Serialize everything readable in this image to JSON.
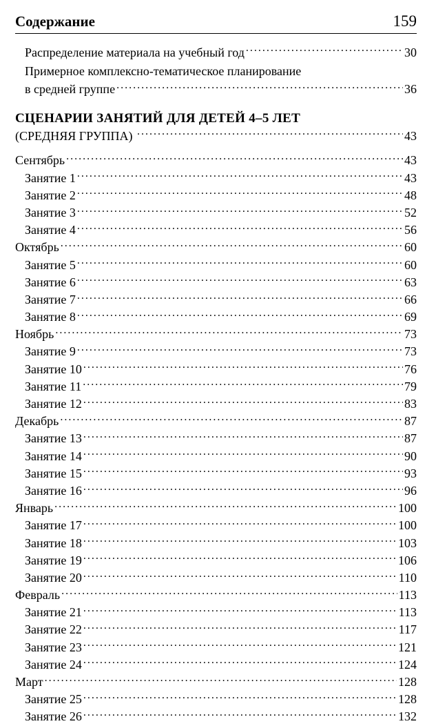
{
  "header": {
    "title": "Содержание",
    "page_number": "159"
  },
  "preface": [
    {
      "label": "Распределение материала на учебный год",
      "page": "30",
      "indent": 1
    },
    {
      "label_lines": [
        "Примерное комплексно-тематическое планирование",
        "в средней группе"
      ],
      "page": "36",
      "indent": 1
    }
  ],
  "section": {
    "title": "СЦЕНАРИИ ЗАНЯТИЙ ДЛЯ ДЕТЕЙ 4–5 ЛЕТ",
    "subtitle": "(СРЕДНЯЯ ГРУППА)",
    "page": "43"
  },
  "months": [
    {
      "name": "Сентябрь",
      "page": "43",
      "lessons": [
        {
          "label": "Занятие 1",
          "page": "43"
        },
        {
          "label": "Занятие 2",
          "page": "48"
        },
        {
          "label": "Занятие 3",
          "page": "52"
        },
        {
          "label": "Занятие 4",
          "page": "56"
        }
      ]
    },
    {
      "name": "Октябрь",
      "page": "60",
      "lessons": [
        {
          "label": "Занятие 5",
          "page": "60"
        },
        {
          "label": "Занятие 6",
          "page": "63"
        },
        {
          "label": "Занятие 7",
          "page": "66"
        },
        {
          "label": "Занятие 8",
          "page": "69"
        }
      ]
    },
    {
      "name": "Ноябрь",
      "page": "73",
      "lessons": [
        {
          "label": "Занятие 9",
          "page": "73"
        },
        {
          "label": "Занятие 10",
          "page": "76"
        },
        {
          "label": "Занятие 11",
          "page": "79"
        },
        {
          "label": "Занятие 12",
          "page": "83"
        }
      ]
    },
    {
      "name": "Декабрь",
      "page": "87",
      "lessons": [
        {
          "label": "Занятие 13",
          "page": "87"
        },
        {
          "label": "Занятие 14",
          "page": "90"
        },
        {
          "label": "Занятие 15",
          "page": "93"
        },
        {
          "label": "Занятие 16",
          "page": "96"
        }
      ]
    },
    {
      "name": "Январь",
      "page": "100",
      "lessons": [
        {
          "label": "Занятие 17",
          "page": "100"
        },
        {
          "label": "Занятие 18",
          "page": "103"
        },
        {
          "label": "Занятие 19",
          "page": "106"
        },
        {
          "label": "Занятие 20",
          "page": "110"
        }
      ]
    },
    {
      "name": "Февраль",
      "page": "113",
      "lessons": [
        {
          "label": "Занятие 21",
          "page": "113"
        },
        {
          "label": "Занятие 22",
          "page": "117"
        },
        {
          "label": "Занятие 23",
          "page": "121"
        },
        {
          "label": "Занятие 24",
          "page": "124"
        }
      ]
    },
    {
      "name": "Март",
      "page": "128",
      "lessons": [
        {
          "label": "Занятие 25",
          "page": "128"
        },
        {
          "label": "Занятие 26",
          "page": "132"
        }
      ]
    }
  ]
}
